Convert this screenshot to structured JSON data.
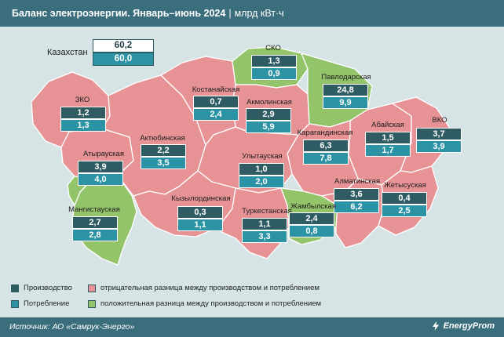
{
  "header": {
    "title": "Баланс электроэнергии. Январь–июнь 2024",
    "separator": "|",
    "unit": "млрд кВт·ч"
  },
  "colors": {
    "production": "#2f5b63",
    "consumption": "#2b93a4",
    "negative_balance": "#e79395",
    "positive_balance": "#94c46a",
    "background": "#d6e4e6",
    "header": "#3b6e7d"
  },
  "total": {
    "label": "Казахстан",
    "production": "60,2",
    "consumption": "60,0"
  },
  "regions": [
    {
      "id": "sko",
      "name": "СКО",
      "production": "1,3",
      "consumption": "0,9",
      "balance": "positive"
    },
    {
      "id": "pavlodar",
      "name": "Павлодарская",
      "production": "24,8",
      "consumption": "9,9",
      "balance": "positive"
    },
    {
      "id": "kostanay",
      "name": "Костанайская",
      "production": "0,7",
      "consumption": "2,4",
      "balance": "negative"
    },
    {
      "id": "akmola",
      "name": "Акмолинская",
      "production": "2,9",
      "consumption": "5,9",
      "balance": "negative"
    },
    {
      "id": "zko",
      "name": "ЗКО",
      "production": "1,2",
      "consumption": "1,3",
      "balance": "negative"
    },
    {
      "id": "vko",
      "name": "ВКО",
      "production": "3,7",
      "consumption": "3,9",
      "balance": "negative"
    },
    {
      "id": "abay",
      "name": "Абайская",
      "production": "1,5",
      "consumption": "1,7",
      "balance": "negative"
    },
    {
      "id": "karaganda",
      "name": "Карагандинская",
      "production": "6,3",
      "consumption": "7,8",
      "balance": "negative"
    },
    {
      "id": "aktobe",
      "name": "Актюбинская",
      "production": "2,2",
      "consumption": "3,5",
      "balance": "negative"
    },
    {
      "id": "atyrau",
      "name": "Атырауская",
      "production": "3,9",
      "consumption": "4,0",
      "balance": "negative"
    },
    {
      "id": "ulytau",
      "name": "Улытауская",
      "production": "1,0",
      "consumption": "2,0",
      "balance": "negative"
    },
    {
      "id": "almaty",
      "name": "Алматинская",
      "production": "3,6",
      "consumption": "6,2",
      "balance": "negative"
    },
    {
      "id": "zhetysu",
      "name": "Жетысуская",
      "production": "0,4",
      "consumption": "2,5",
      "balance": "negative"
    },
    {
      "id": "mangystau",
      "name": "Мангистауская",
      "production": "2,7",
      "consumption": "2,8",
      "balance": "negative"
    },
    {
      "id": "kyzylorda",
      "name": "Кызылординская",
      "production": "0,3",
      "consumption": "1,1",
      "balance": "negative"
    },
    {
      "id": "turkestan",
      "name": "Туркестанская",
      "production": "1,1",
      "consumption": "3,3",
      "balance": "negative"
    },
    {
      "id": "zhambyl",
      "name": "Жамбылская",
      "production": "2,4",
      "consumption": "0,8",
      "balance": "positive"
    }
  ],
  "legend": {
    "production": "Производство",
    "consumption": "Потребление",
    "negative": "отрицательная разница между производством и потреблением",
    "positive": "положительная разница между производством и потреблением"
  },
  "footer": {
    "source": "Источник: АО «Самрук-Энерго»",
    "brand": "EnergyProm"
  }
}
